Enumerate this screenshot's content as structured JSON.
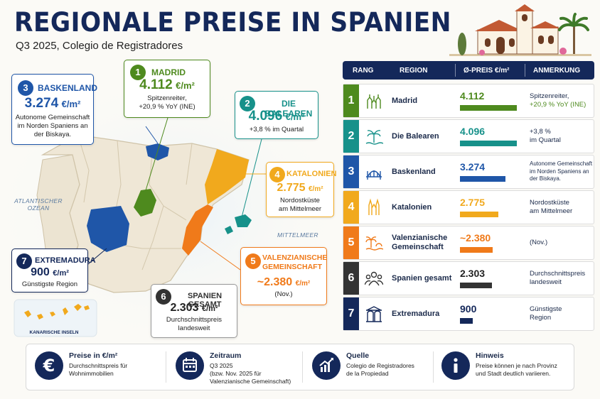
{
  "header": {
    "title": "REGIONALE PREISE IN SPANIEN",
    "subtitle": "Q3 2025, Colegio de Registradores"
  },
  "map": {
    "sea_atlantic": "ATLANTISCHER OZEAN",
    "sea_med": "MITTELMEER",
    "canary_label": "KANARISCHE INSELN",
    "callouts": [
      {
        "num": "1",
        "name": "MADRID",
        "price": "4.112",
        "unit": "€/m²",
        "note1": "Spitzenreiter,",
        "note2": "+20,9 % YoY (INE)",
        "color": "#4e8a1e"
      },
      {
        "num": "2",
        "name": "DIE BALEAREN",
        "price": "4.096",
        "unit": "€/m²",
        "note1": "+3,8 % im Quartal",
        "color": "#17918a"
      },
      {
        "num": "3",
        "name": "BASKENLAND",
        "price": "3.274",
        "unit": "€/m²",
        "note1": "Autonome Gemeinschaft",
        "note2": "im Norden Spaniens an",
        "note3": "der Biskaya.",
        "color": "#1f56a8"
      },
      {
        "num": "4",
        "name": "KATALONIEN",
        "price": "2.775",
        "unit": "€/m²",
        "note1": "Nordostküste",
        "note2": "am Mittelmeer",
        "color": "#f1a91d"
      },
      {
        "num": "5",
        "name": "VALENZIANISCHE",
        "name2": "GEMEINSCHAFT",
        "price": "~2.380",
        "unit": "€/m²",
        "note1": "(Nov.)",
        "color": "#f07a1a"
      },
      {
        "num": "6",
        "name": "SPANIEN GESAMT",
        "price": "2.303",
        "unit": "€/m²",
        "note1": "Durchschnittspreis",
        "note2": "landesweit",
        "color": "#333333"
      },
      {
        "num": "7",
        "name": "EXTREMADURA",
        "price": "900",
        "unit": "€/m²",
        "note1": "Günstigste Region",
        "color": "#14285a"
      }
    ]
  },
  "table": {
    "headers": [
      "RANG",
      "REGION",
      "Ø-PREIS €/m²",
      "ANMERKUNG"
    ],
    "max_value": 4112,
    "rows": [
      {
        "rank": "1",
        "region": "Madrid",
        "price": "4.112",
        "value": 4112,
        "note": "Spitzenreiter,",
        "note2": "+20,9 % YoY (INE)",
        "color": "#4e8a1e",
        "icon": "cathedral-icon"
      },
      {
        "rank": "2",
        "region": "Die Balearen",
        "price": "4.096",
        "value": 4096,
        "note": "+3,8 %",
        "note2": "im Quartal",
        "color": "#17918a",
        "icon": "palm-icon"
      },
      {
        "rank": "3",
        "region": "Baskenland",
        "price": "3.274",
        "value": 3274,
        "note": "Autonome Gemeinschaft",
        "note2": "im Norden Spaniens an",
        "note3": "der Biskaya.",
        "color": "#1f56a8",
        "icon": "bridge-icon"
      },
      {
        "rank": "4",
        "region": "Katalonien",
        "price": "2.775",
        "value": 2775,
        "note": "Nordostküste",
        "note2": "am Mittelmeer",
        "color": "#f1a91d",
        "icon": "sagrada-familia-icon"
      },
      {
        "rank": "5",
        "region": "Valenzianische",
        "region2": "Gemeinschaft",
        "price": "~2.380",
        "value": 2380,
        "note": "(Nov.)",
        "color": "#f07a1a",
        "icon": "palm-sea-icon"
      },
      {
        "rank": "6",
        "region": "Spanien gesamt",
        "price": "2.303",
        "value": 2303,
        "note": "Durchschnittspreis",
        "note2": "landesweit",
        "color": "#333333",
        "icon": "people-icon"
      },
      {
        "rank": "7",
        "region": "Extremadura",
        "price": "900",
        "value": 900,
        "note": "Günstigste",
        "note2": "Region",
        "color": "#14285a",
        "icon": "roman-arch-icon"
      }
    ]
  },
  "footer": [
    {
      "title": "Preise in €/m²",
      "desc1": "Durchschnittspreis für",
      "desc2": "Wohnimmobilien",
      "icon": "euro-icon"
    },
    {
      "title": "Zeitraum",
      "desc1": "Q3 2025",
      "desc2": "(bzw. Nov. 2025 für",
      "desc3": "Valenzianische Gemeinschaft)",
      "icon": "calendar-icon"
    },
    {
      "title": "Quelle",
      "desc1": "Colegio de Registradores",
      "desc2": "de la Propiedad",
      "icon": "chart-growth-icon"
    },
    {
      "title": "Hinweis",
      "desc1": "Preise können je nach Provinz",
      "desc2": "und Stadt deutlich variieren.",
      "icon": "info-icon"
    }
  ]
}
